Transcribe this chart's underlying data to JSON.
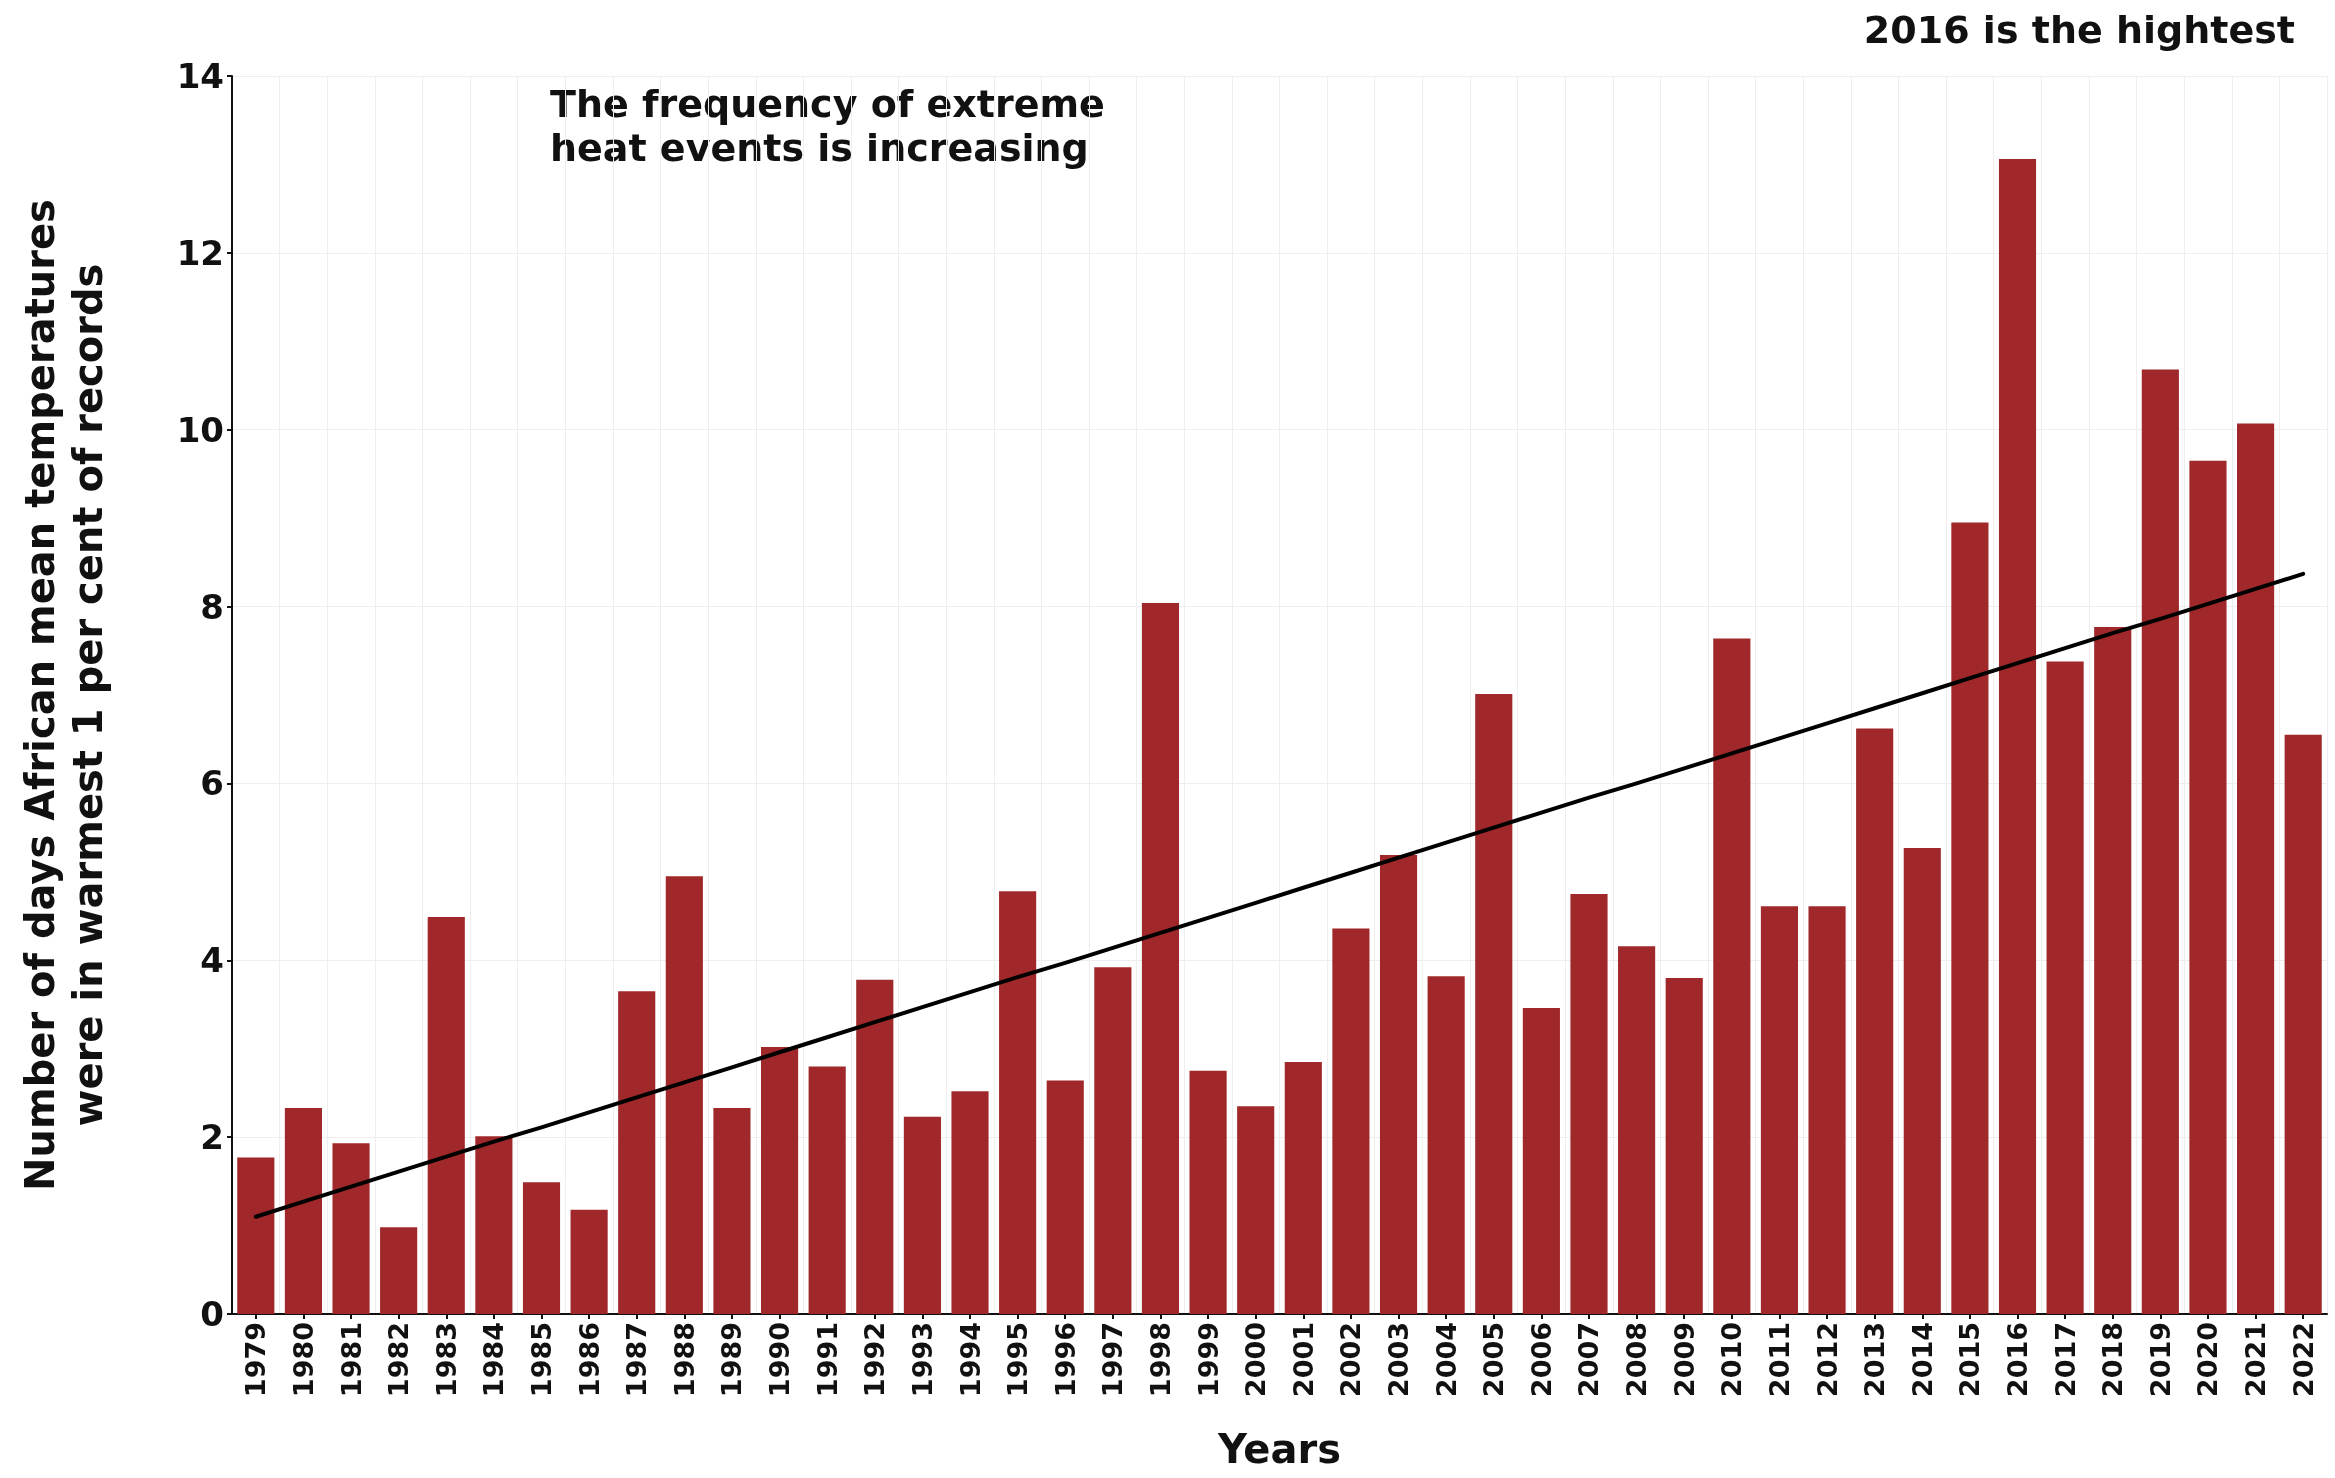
{
  "chart_data": {
    "type": "bar",
    "xlabel": "Years",
    "ylabel": "Number of days African mean temperatures\nwere in warmest 1 per cent of records",
    "annotations": [
      "The frequency of extreme\nheat events is increasing",
      "2016 is the hightest"
    ],
    "categories": [
      "1979",
      "1980",
      "1981",
      "1982",
      "1983",
      "1984",
      "1985",
      "1986",
      "1987",
      "1988",
      "1989",
      "1990",
      "1991",
      "1992",
      "1993",
      "1994",
      "1995",
      "1996",
      "1997",
      "1998",
      "1999",
      "2000",
      "2001",
      "2002",
      "2003",
      "2004",
      "2005",
      "2006",
      "2007",
      "2008",
      "2009",
      "2010",
      "2011",
      "2012",
      "2013",
      "2014",
      "2015",
      "2016",
      "2017",
      "2018",
      "2019",
      "2020",
      "2021",
      "2022"
    ],
    "series": [
      {
        "color": "#a0282a",
        "values": [
          1.77,
          2.33,
          1.93,
          0.98,
          4.49,
          2.01,
          1.49,
          1.18,
          3.65,
          4.95,
          2.33,
          3.02,
          2.8,
          3.78,
          2.23,
          2.52,
          4.78,
          2.64,
          3.92,
          8.04,
          2.75,
          2.35,
          2.85,
          4.36,
          5.19,
          3.82,
          7.01,
          3.46,
          4.75,
          4.16,
          3.8,
          7.64,
          4.61,
          4.61,
          6.62,
          5.27,
          8.95,
          13.06,
          7.38,
          7.77,
          10.68,
          9.65,
          10.07,
          6.55
        ]
      },
      {
        "type": "line",
        "color": "#000000",
        "values": [
          1.1,
          1.27,
          1.44,
          1.61,
          1.78,
          1.95,
          2.11,
          2.28,
          2.45,
          2.62,
          2.79,
          2.96,
          3.13,
          3.3,
          3.47,
          3.64,
          3.81,
          3.97,
          4.14,
          4.31,
          4.48,
          4.65,
          4.82,
          4.99,
          5.16,
          5.33,
          5.5,
          5.67,
          5.84,
          6.0,
          6.17,
          6.34,
          6.51,
          6.68,
          6.85,
          7.02,
          7.19,
          7.36,
          7.53,
          7.7,
          7.86,
          8.03,
          8.2,
          8.37
        ],
        "marker": "none",
        "line_style": "solid"
      }
    ],
    "ylim": [
      0,
      14
    ],
    "yticks": [
      0,
      2,
      4,
      6,
      8,
      10,
      12,
      14
    ],
    "grid": true
  }
}
